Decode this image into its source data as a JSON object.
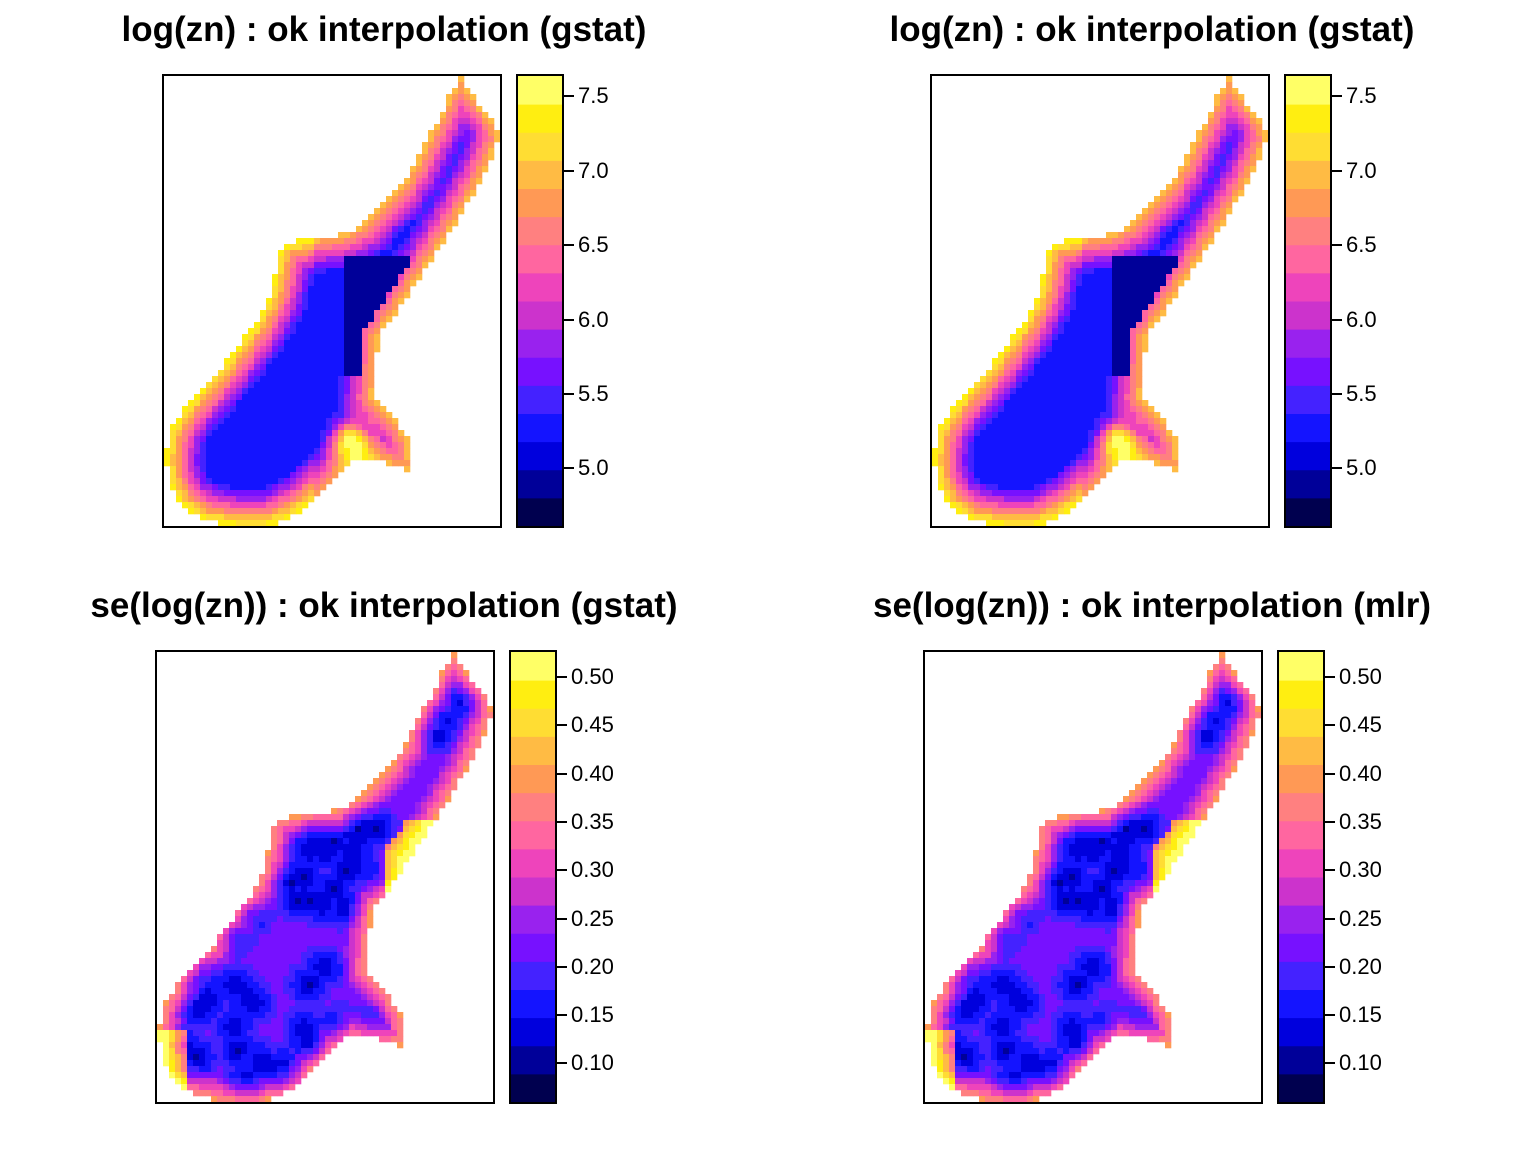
{
  "chart_data": [
    {
      "type": "heatmap",
      "title": "log(zn) : ok interpolation (gstat)",
      "legend": {
        "ticks": [
          "7.5",
          "7.0",
          "6.5",
          "6.0",
          "5.5",
          "5.0"
        ],
        "tick_values": [
          7.5,
          7.0,
          6.5,
          6.0,
          5.5,
          5.0
        ],
        "range": [
          4.6,
          7.65
        ],
        "levels": 16
      },
      "field": "zn"
    },
    {
      "type": "heatmap",
      "title": "log(zn) : ok interpolation (gstat)",
      "legend": {
        "ticks": [
          "7.5",
          "7.0",
          "6.5",
          "6.0",
          "5.5",
          "5.0"
        ],
        "tick_values": [
          7.5,
          7.0,
          6.5,
          6.0,
          5.5,
          5.0
        ],
        "range": [
          4.6,
          7.65
        ],
        "levels": 16
      },
      "field": "zn"
    },
    {
      "type": "heatmap",
      "title": "se(log(zn)) : ok interpolation (gstat)",
      "legend": {
        "ticks": [
          "0.50",
          "0.45",
          "0.40",
          "0.35",
          "0.30",
          "0.25",
          "0.20",
          "0.15",
          "0.10"
        ],
        "tick_values": [
          0.5,
          0.45,
          0.4,
          0.35,
          0.3,
          0.25,
          0.2,
          0.15,
          0.1
        ],
        "range": [
          0.058,
          0.528
        ],
        "levels": 16
      },
      "field": "se"
    },
    {
      "type": "heatmap",
      "title": "se(log(zn)) : ok interpolation (mlr)",
      "legend": {
        "ticks": [
          "0.50",
          "0.45",
          "0.40",
          "0.35",
          "0.30",
          "0.25",
          "0.20",
          "0.15",
          "0.10"
        ],
        "tick_values": [
          0.5,
          0.45,
          0.4,
          0.35,
          0.3,
          0.25,
          0.2,
          0.15,
          0.1
        ],
        "range": [
          0.058,
          0.528
        ],
        "levels": 16
      },
      "field": "se"
    }
  ],
  "colors": {
    "palette": [
      "#0d0887",
      "#00004f",
      "#00008a",
      "#0000d4",
      "#1a10ff",
      "#4a1cff",
      "#7a1fff",
      "#a82ae6",
      "#cc33cc",
      "#ee40b3",
      "#ff5c99",
      "#ff7a7a",
      "#ff9966",
      "#ffb547",
      "#ffd030",
      "#ffe21a",
      "#ffff66"
    ],
    "legend_stops": [
      "#000033",
      "#00004f",
      "#000099",
      "#0000dd",
      "#1414ff",
      "#4422ff",
      "#7711ff",
      "#9922ee",
      "#cc33cc",
      "#ee44bb",
      "#ff66a0",
      "#ff8080",
      "#ff9955",
      "#ffbb44",
      "#ffdd33",
      "#ffee11",
      "#ffff66"
    ]
  }
}
